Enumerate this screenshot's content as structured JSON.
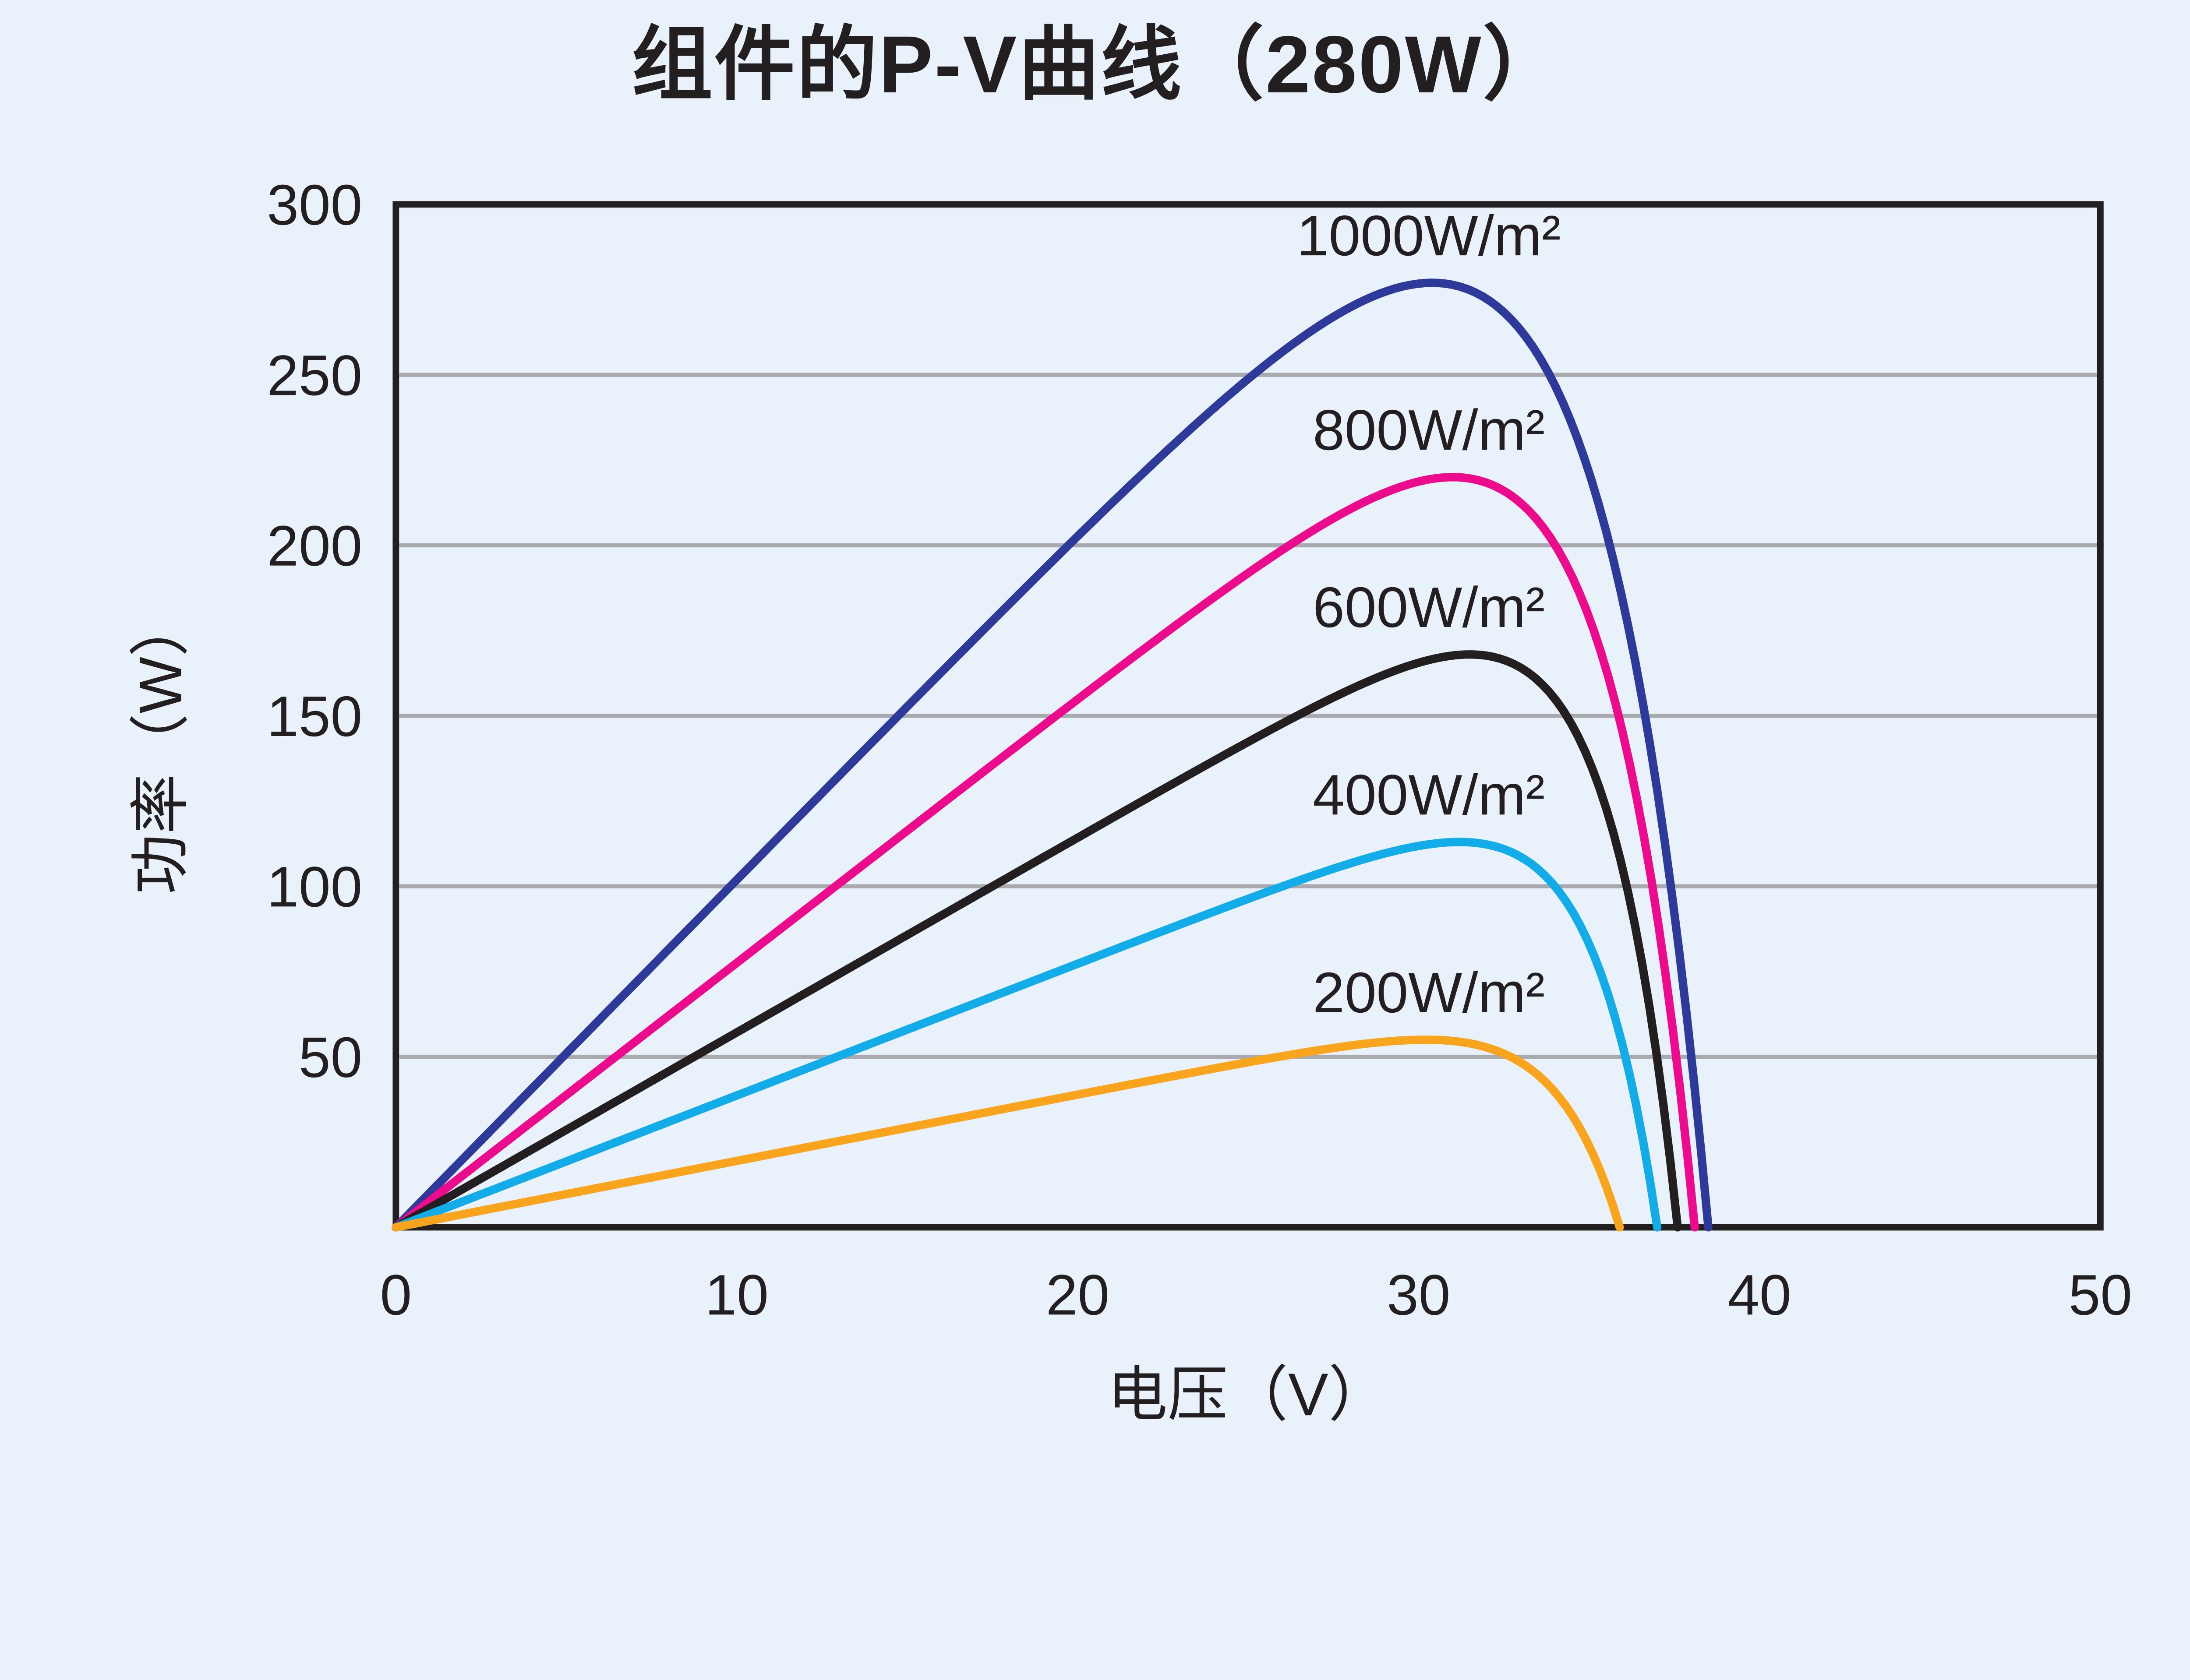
{
  "title": "组件的P-V曲线（280W）",
  "colors": {
    "background": "#e9f1fb",
    "title": "#0d8fd2",
    "axis": "#231f20",
    "grid": "#a8aaad",
    "text": "#231f20"
  },
  "chart_data": {
    "type": "line",
    "title": "组件的P-V曲线（280W）",
    "xlabel": "电压（V）",
    "ylabel": "功率（W）",
    "x_unit": "V",
    "y_unit": "W",
    "xlim": [
      0,
      50
    ],
    "ylim": [
      0,
      300
    ],
    "x_ticks": [
      0,
      10,
      20,
      30,
      40,
      50
    ],
    "y_ticks": [
      50,
      100,
      150,
      200,
      250,
      300
    ],
    "grid_lines": [
      50,
      100,
      150,
      200,
      250
    ],
    "grid_style": "horizontal only",
    "legend": "inline labels above each curve peak",
    "series": [
      {
        "name": "1000W/m²",
        "color": "#2e3a99",
        "p_max": 277,
        "v_mp": 30.4,
        "v_oc": 38.5,
        "p_at_10v": 102
      },
      {
        "name": "800W/m²",
        "color": "#ec0b8c",
        "p_max": 220,
        "v_mp": 31.0,
        "v_oc": 38.1,
        "p_at_10v": 78
      },
      {
        "name": "600W/m²",
        "color": "#231f20",
        "p_max": 168,
        "v_mp": 31.5,
        "v_oc": 37.6,
        "p_at_10v": 58
      },
      {
        "name": "400W/m²",
        "color": "#12ace9",
        "p_max": 113,
        "v_mp": 31.2,
        "v_oc": 37.0,
        "p_at_10v": 39
      },
      {
        "name": "200W/m²",
        "color": "#f8a41d",
        "p_max": 55,
        "v_mp": 30.2,
        "v_oc": 35.9,
        "p_at_10v": 20
      }
    ]
  }
}
